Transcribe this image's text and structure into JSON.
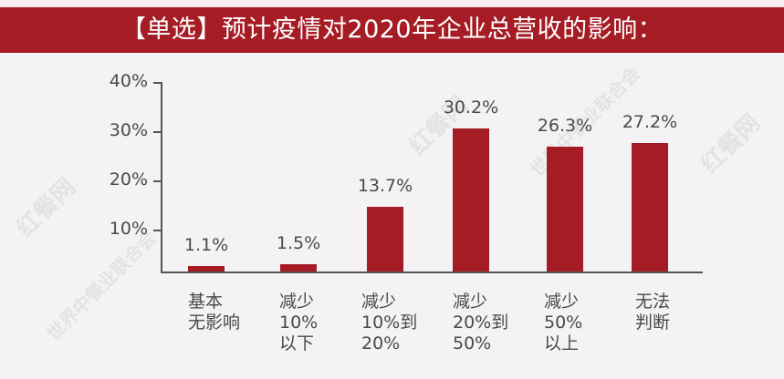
{
  "title": "【单选】预计疫情对2020年企业总营收的影响：",
  "colors": {
    "accent": "#a51c24",
    "background": "#f4f2f4",
    "text": "#4a4a4a",
    "axis": "#555555"
  },
  "watermarks": [
    "红餐网",
    "世界中餐业联合会",
    "红餐网",
    "世界中餐业联合会",
    "红餐网"
  ],
  "y_ticks": [
    "40%",
    "30%",
    "20%",
    "10%"
  ],
  "bars": [
    {
      "category": "基本\n无影响",
      "value": 1.1,
      "label": "1.1%"
    },
    {
      "category": "减少\n10%\n以下",
      "value": 1.5,
      "label": "1.5%"
    },
    {
      "category": "减少\n10%到\n20%",
      "value": 13.7,
      "label": "13.7%"
    },
    {
      "category": "减少\n20%到\n50%",
      "value": 30.2,
      "label": "30.2%"
    },
    {
      "category": "减少\n50%\n以上",
      "value": 26.3,
      "label": "26.3%"
    },
    {
      "category": "无法\n判断",
      "value": 27.2,
      "label": "27.2%"
    }
  ],
  "chart_data": {
    "type": "bar",
    "title": "【单选】预计疫情对2020年企业总营收的影响：",
    "categories": [
      "基本无影响",
      "减少10%以下",
      "减少10%到20%",
      "减少20%到50%",
      "减少50%以上",
      "无法判断"
    ],
    "values": [
      1.1,
      1.5,
      13.7,
      30.2,
      26.3,
      27.2
    ],
    "data_labels": [
      "1.1%",
      "1.5%",
      "13.7%",
      "30.2%",
      "26.3%",
      "27.2%"
    ],
    "xlabel": "",
    "ylabel": "",
    "yticks": [
      "10%",
      "20%",
      "30%",
      "40%"
    ],
    "ylim": [
      0,
      40
    ],
    "grid": false,
    "legend": null,
    "bar_color": "#a51c24"
  }
}
